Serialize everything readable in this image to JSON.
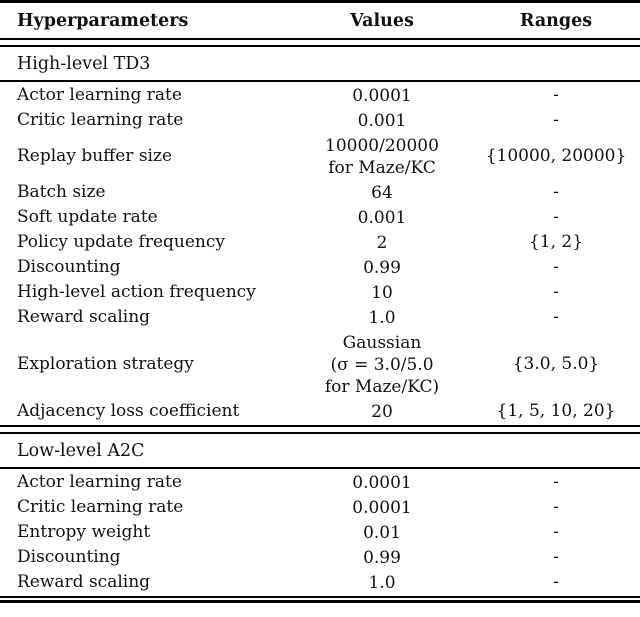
{
  "colors": {
    "text": "#111111",
    "rule": "#000000",
    "background": "#ffffff"
  },
  "table": {
    "columns": {
      "c1": "Hyperparameters",
      "c2": "Values",
      "c3": "Ranges"
    },
    "sections": [
      {
        "title": "High-level TD3",
        "rows": [
          {
            "name": "Actor learning rate",
            "value": "0.0001",
            "range": "-"
          },
          {
            "name": "Critic learning rate",
            "value": "0.001",
            "range": "-"
          },
          {
            "name": "Replay buffer size",
            "value": "10000/20000\nfor Maze/KC",
            "range": "{10000, 20000}"
          },
          {
            "name": "Batch size",
            "value": "64",
            "range": "-"
          },
          {
            "name": "Soft update rate",
            "value": "0.001",
            "range": "-"
          },
          {
            "name": "Policy update frequency",
            "value": "2",
            "range": "{1, 2}"
          },
          {
            "name": "Discounting",
            "value": "0.99",
            "range": "-"
          },
          {
            "name": "High-level action frequency",
            "value": "10",
            "range": "-"
          },
          {
            "name": "Reward scaling",
            "value": "1.0",
            "range": "-"
          },
          {
            "name": "Exploration strategy",
            "value": "Gaussian\n(σ = 3.0/5.0\nfor Maze/KC)",
            "range": "{3.0, 5.0}"
          },
          {
            "name": "Adjacency loss coefficient",
            "value": "20",
            "range": "{1, 5, 10, 20}"
          }
        ]
      },
      {
        "title": "Low-level A2C",
        "rows": [
          {
            "name": "Actor learning rate",
            "value": "0.0001",
            "range": "-"
          },
          {
            "name": "Critic learning rate",
            "value": "0.0001",
            "range": "-"
          },
          {
            "name": "Entropy weight",
            "value": "0.01",
            "range": "-"
          },
          {
            "name": "Discounting",
            "value": "0.99",
            "range": "-"
          },
          {
            "name": "Reward scaling",
            "value": "1.0",
            "range": "-"
          }
        ]
      }
    ]
  }
}
